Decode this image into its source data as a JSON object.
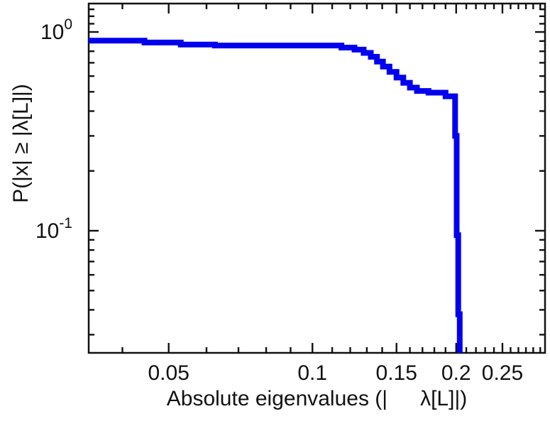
{
  "chart_data": {
    "type": "line",
    "subtype": "ccdf-step",
    "title": "",
    "x_scale": "log",
    "y_scale": "log",
    "x_range": [
      0.034,
      0.307
    ],
    "y_range": [
      0.0243,
      1.39
    ],
    "xlabel": "Absolute eigenvalues (| λ[L]|)",
    "xlabel_left": "Absolute eigenvalues (|",
    "xlabel_right": "λ[L]|)",
    "ylabel": "P(|x| ≥ |λ[L]|)",
    "line_color": "#0000ee",
    "frame_color": "#111111",
    "grid": "off",
    "legend": "none",
    "x_ticks": [
      {
        "value": 0.05,
        "label": "0.05"
      },
      {
        "value": 0.1,
        "label": "0.1"
      },
      {
        "value": 0.15,
        "label": "0.15"
      },
      {
        "value": 0.2,
        "label": "0.2"
      },
      {
        "value": 0.25,
        "label": "0.25"
      }
    ],
    "x_minor_ticks": [
      0.04,
      0.06,
      0.07,
      0.08,
      0.09,
      0.11,
      0.12,
      0.13,
      0.14,
      0.16,
      0.17,
      0.18,
      0.19,
      0.21,
      0.22,
      0.23,
      0.24,
      0.26,
      0.27,
      0.28,
      0.29,
      0.3
    ],
    "y_ticks": [
      {
        "value": 1,
        "base": "10",
        "exp": "0"
      },
      {
        "value": 0.1,
        "base": "10",
        "exp": "-1"
      }
    ],
    "y_minor_ticks": [
      1.3,
      1.2,
      1.1,
      0.9,
      0.8,
      0.7,
      0.6,
      0.5,
      0.4,
      0.3,
      0.2,
      0.09,
      0.08,
      0.07,
      0.06,
      0.05,
      0.04,
      0.03
    ],
    "points": [
      [
        0.034,
        0.905
      ],
      [
        0.0445,
        0.905
      ],
      [
        0.0445,
        0.885
      ],
      [
        0.053,
        0.885
      ],
      [
        0.053,
        0.865
      ],
      [
        0.0625,
        0.865
      ],
      [
        0.0625,
        0.855
      ],
      [
        0.115,
        0.855
      ],
      [
        0.115,
        0.835
      ],
      [
        0.1225,
        0.835
      ],
      [
        0.1225,
        0.815
      ],
      [
        0.128,
        0.815
      ],
      [
        0.128,
        0.785
      ],
      [
        0.1325,
        0.785
      ],
      [
        0.1325,
        0.75
      ],
      [
        0.1365,
        0.75
      ],
      [
        0.1365,
        0.71
      ],
      [
        0.1405,
        0.71
      ],
      [
        0.1405,
        0.67
      ],
      [
        0.145,
        0.67
      ],
      [
        0.145,
        0.63
      ],
      [
        0.15,
        0.63
      ],
      [
        0.15,
        0.59
      ],
      [
        0.155,
        0.59
      ],
      [
        0.155,
        0.555
      ],
      [
        0.16,
        0.555
      ],
      [
        0.16,
        0.525
      ],
      [
        0.1655,
        0.525
      ],
      [
        0.1655,
        0.505
      ],
      [
        0.175,
        0.505
      ],
      [
        0.175,
        0.495
      ],
      [
        0.19,
        0.495
      ],
      [
        0.19,
        0.475
      ],
      [
        0.199,
        0.475
      ],
      [
        0.199,
        0.3
      ],
      [
        0.2005,
        0.3
      ],
      [
        0.2005,
        0.095
      ],
      [
        0.202,
        0.095
      ],
      [
        0.202,
        0.038
      ],
      [
        0.2035,
        0.038
      ],
      [
        0.2035,
        0.0225
      ]
    ]
  }
}
